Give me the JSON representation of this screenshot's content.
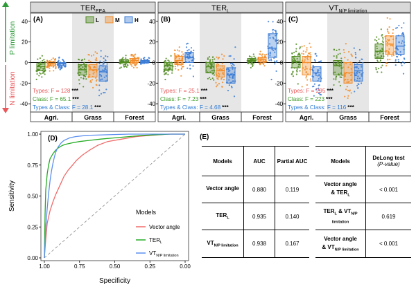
{
  "colors": {
    "low": "#4f8a1f",
    "medium": "#f28c28",
    "high": "#3a7bd5",
    "shade": "#e6e6e6",
    "header": "#d9d9d9",
    "types_text": "#e8585a",
    "class_text": "#3c9a25",
    "tc_text": "#2e7bd6",
    "p_arrow": "#2e9a3a",
    "n_arrow": "#e8585a",
    "roc_vector": "#f06b6b",
    "roc_ter": "#22aa22",
    "roc_vt": "#5b8ff0"
  },
  "legend_top": [
    {
      "key": "L",
      "color": "low"
    },
    {
      "key": "M",
      "color": "medium"
    },
    {
      "key": "H",
      "color": "high"
    }
  ],
  "axis_side": {
    "p_label": "P limitation",
    "n_label": "N limitation"
  },
  "chart_data": [
    {
      "type": "box",
      "panel": "(A)",
      "title_main": "TER",
      "title_sub": "EEA",
      "categories": [
        "Agri.",
        "Grass",
        "Forest"
      ],
      "groups": [
        "L",
        "M",
        "H"
      ],
      "ylim": [
        -48,
        48
      ],
      "yticks": [
        40,
        20,
        0,
        -20,
        -40
      ],
      "shaded_category": "Grass",
      "boxes": {
        "Agri.": {
          "L": [
            -8,
            -4,
            -1
          ],
          "M": [
            -3,
            -1,
            1
          ],
          "H": [
            -3,
            -1,
            0
          ]
        },
        "Grass": {
          "L": [
            -12,
            -7,
            -2
          ],
          "M": [
            -14,
            -7,
            -2
          ],
          "H": [
            -18,
            -9,
            -3
          ]
        },
        "Forest": {
          "L": [
            0,
            1,
            3
          ],
          "M": [
            0,
            2,
            4
          ],
          "H": [
            0,
            1,
            2
          ]
        }
      },
      "stats": [
        {
          "label": "Types: F = 128",
          "stars": "***",
          "color": "types_text"
        },
        {
          "label": "Class: F = 65.1",
          "stars": "***",
          "color": "class_text"
        },
        {
          "label": "Types & Class: F = 28.1",
          "stars": "***",
          "color": "tc_text"
        }
      ]
    },
    {
      "type": "box",
      "panel": "(B)",
      "title_main": "TER",
      "title_sub": "L",
      "categories": [
        "Agri.",
        "Grass",
        "Forest"
      ],
      "groups": [
        "L",
        "M",
        "H"
      ],
      "ylim": [
        -48,
        48
      ],
      "yticks": [
        40,
        20,
        0,
        -20,
        -40
      ],
      "shaded_category": "Grass",
      "boxes": {
        "Agri.": {
          "L": [
            -7,
            -3,
            0
          ],
          "M": [
            -2,
            2,
            6
          ],
          "H": [
            0,
            5,
            10
          ]
        },
        "Grass": {
          "L": [
            -10,
            -4,
            0
          ],
          "M": [
            -14,
            -8,
            -3
          ],
          "H": [
            -20,
            -12,
            -5
          ]
        },
        "Forest": {
          "L": [
            1,
            2,
            4
          ],
          "M": [
            1,
            3,
            5
          ],
          "H": [
            5,
            14,
            28
          ]
        }
      },
      "stats": [
        {
          "label": "Types: F = 25.1",
          "stars": "***",
          "color": "types_text"
        },
        {
          "label": "Class: F = 7.23",
          "stars": "***",
          "color": "class_text"
        },
        {
          "label": "Types & Class: F = 4.68",
          "stars": "***",
          "color": "tc_text"
        }
      ]
    },
    {
      "type": "box",
      "panel": "(C)",
      "title_main": "VT",
      "title_sub": "N/P limitation",
      "categories": [
        "Agri.",
        "Grass",
        "Forest"
      ],
      "groups": [
        "L",
        "M",
        "H"
      ],
      "ylim": [
        -48,
        48
      ],
      "yticks": [
        40,
        20,
        0,
        -20,
        -40
      ],
      "shaded_category": "Grass",
      "boxes": {
        "Agri.": {
          "L": [
            -5,
            1,
            6
          ],
          "M": [
            -12,
            0,
            6
          ],
          "H": [
            -18,
            -10,
            -4
          ]
        },
        "Grass": {
          "L": [
            -12,
            -3,
            2
          ],
          "M": [
            -20,
            -10,
            0
          ],
          "H": [
            -18,
            -8,
            -2
          ]
        },
        "Forest": {
          "L": [
            4,
            11,
            18
          ],
          "M": [
            8,
            18,
            26
          ],
          "H": [
            8,
            16,
            26
          ]
        }
      },
      "stats": [
        {
          "label": "Types: F = 295",
          "stars": "***",
          "color": "types_text"
        },
        {
          "label": "Class: F = 223",
          "stars": "***",
          "color": "class_text"
        },
        {
          "label": "Types & Class: F = 116",
          "stars": "***",
          "color": "tc_text"
        }
      ]
    },
    {
      "type": "line",
      "panel": "(D)",
      "xlabel": "Specificity",
      "ylabel": "Sensitivity",
      "xlim": [
        1.0,
        0.0
      ],
      "ylim": [
        0.0,
        1.0
      ],
      "xticks": [
        "1.00",
        "0.75",
        "0.50",
        "0.25",
        "0.00"
      ],
      "yticks": [
        "1.00",
        "0.75",
        "0.50",
        "0.25",
        "0.00"
      ],
      "legend_title": "Models",
      "series": [
        {
          "name": "Vector angle",
          "color": "roc_vector",
          "x": [
            1.0,
            0.99,
            0.98,
            0.96,
            0.94,
            0.92,
            0.9,
            0.88,
            0.86,
            0.83,
            0.8,
            0.77,
            0.73,
            0.68,
            0.62,
            0.55,
            0.45,
            0.35,
            0.25,
            0.12,
            0.0
          ],
          "y": [
            0.0,
            0.15,
            0.28,
            0.38,
            0.45,
            0.51,
            0.56,
            0.61,
            0.66,
            0.71,
            0.75,
            0.79,
            0.83,
            0.87,
            0.91,
            0.94,
            0.96,
            0.98,
            0.99,
            1.0,
            1.0
          ]
        },
        {
          "name": "TER",
          "name_sub": "L",
          "color": "roc_ter",
          "x": [
            1.0,
            0.995,
            0.99,
            0.98,
            0.97,
            0.96,
            0.94,
            0.92,
            0.9,
            0.87,
            0.84,
            0.8,
            0.75,
            0.68,
            0.6,
            0.5,
            0.4,
            0.3,
            0.2,
            0.1,
            0.0
          ],
          "y": [
            0.0,
            0.35,
            0.55,
            0.68,
            0.75,
            0.8,
            0.84,
            0.87,
            0.89,
            0.91,
            0.92,
            0.93,
            0.94,
            0.95,
            0.96,
            0.97,
            0.98,
            0.99,
            0.995,
            1.0,
            1.0
          ]
        },
        {
          "name": "VT",
          "name_sub": "N/P limitation",
          "color": "roc_vt",
          "x": [
            1.0,
            0.99,
            0.98,
            0.97,
            0.96,
            0.95,
            0.94,
            0.93,
            0.92,
            0.91,
            0.9,
            0.88,
            0.86,
            0.84,
            0.82,
            0.78,
            0.7,
            0.55,
            0.4,
            0.2,
            0.0
          ],
          "y": [
            0.0,
            0.25,
            0.4,
            0.52,
            0.62,
            0.7,
            0.76,
            0.81,
            0.85,
            0.88,
            0.9,
            0.93,
            0.95,
            0.96,
            0.97,
            0.98,
            0.99,
            0.995,
            1.0,
            1.0,
            1.0
          ]
        }
      ]
    }
  ],
  "table": {
    "panel": "(E)",
    "left_headers": [
      "Models",
      "AUC",
      "Partial AUC"
    ],
    "right_headers": [
      "Models",
      "DeLong test",
      "(P-value)"
    ],
    "rows": [
      {
        "model": "Vector angle",
        "model_sub": "",
        "auc": "0.880",
        "pauc": "0.119",
        "cmp_a": "Vector angle",
        "cmp_a_sub": "",
        "cmp_b": "& TER",
        "cmp_b_sub": "L",
        "p": "< 0.001"
      },
      {
        "model": "TER",
        "model_sub": "L",
        "auc": "0.935",
        "pauc": "0.140",
        "cmp_a": "TER",
        "cmp_a_sub": "L",
        "cmp_b": "& VT",
        "cmp_b_sub": "N/P limitation",
        "p": "0.619"
      },
      {
        "model": "VT",
        "model_sub": "N/P limitation",
        "auc": "0.938",
        "pauc": "0.167",
        "cmp_a": "Vector angle",
        "cmp_a_sub": "",
        "cmp_b": "& VT",
        "cmp_b_sub": "N/P limitation",
        "p": "< 0.001"
      }
    ]
  }
}
